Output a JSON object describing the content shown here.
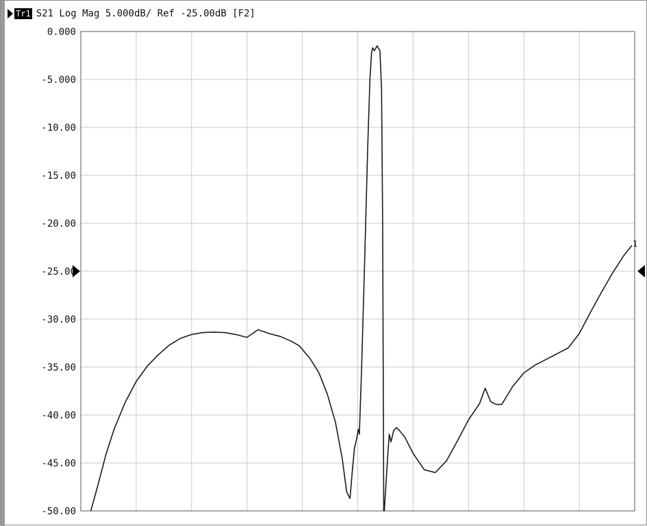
{
  "header": {
    "trace_badge": "Tr1",
    "trace_desc": "S21 Log Mag 5.000dB/ Ref -25.00dB [F2]"
  },
  "chart_data": {
    "type": "line",
    "title": "",
    "xlabel": "",
    "ylabel": "",
    "ylim": [
      -50,
      0
    ],
    "xlim": [
      0,
      10
    ],
    "y_ticks": [
      "0.000",
      "-5.000",
      "-10.00",
      "-15.00",
      "-20.00",
      "-25.00",
      "-30.00",
      "-35.00",
      "-40.00",
      "-45.00",
      "-50.00"
    ],
    "y_tick_values": [
      0,
      -5,
      -10,
      -15,
      -20,
      -25,
      -30,
      -35,
      -40,
      -45,
      -50
    ],
    "x_divisions": 10,
    "reference_level": -25,
    "grid": true,
    "trace_label": "1",
    "series": [
      {
        "name": "S21",
        "x": [
          0.18,
          0.3,
          0.45,
          0.6,
          0.8,
          1.0,
          1.2,
          1.4,
          1.6,
          1.8,
          2.0,
          2.2,
          2.4,
          2.6,
          2.8,
          3.0,
          3.2,
          3.4,
          3.6,
          3.8,
          3.95,
          4.05,
          4.15,
          4.3,
          4.45,
          4.6,
          4.72,
          4.8,
          4.86,
          4.9,
          4.94,
          4.98,
          5.01,
          5.03,
          5.07,
          5.12,
          5.18,
          5.22,
          5.25,
          5.27,
          5.3,
          5.35,
          5.4,
          5.43,
          5.45,
          5.47,
          5.48,
          5.55,
          5.57,
          5.6,
          5.65,
          5.7,
          5.75,
          5.85,
          6.0,
          6.2,
          6.4,
          6.6,
          6.8,
          7.0,
          7.2,
          7.3,
          7.4,
          7.5,
          7.6,
          7.8,
          8.0,
          8.2,
          8.4,
          8.6,
          8.8,
          9.0,
          9.2,
          9.4,
          9.6,
          9.8,
          9.95
        ],
        "values": [
          -50.0,
          -47.5,
          -44.2,
          -41.5,
          -38.7,
          -36.5,
          -34.9,
          -33.7,
          -32.7,
          -32.0,
          -31.6,
          -31.4,
          -31.35,
          -31.4,
          -31.6,
          -31.9,
          -31.1,
          -31.5,
          -31.8,
          -32.3,
          -32.8,
          -33.5,
          -34.2,
          -35.6,
          -37.8,
          -40.8,
          -44.5,
          -48.0,
          -48.7,
          -46.0,
          -43.5,
          -42.5,
          -41.5,
          -42.0,
          -35.0,
          -25.0,
          -12.0,
          -5.0,
          -2.2,
          -1.7,
          -2.0,
          -1.5,
          -2.0,
          -6.0,
          -20.0,
          -50.0,
          -50.0,
          -43.5,
          -42.0,
          -42.8,
          -41.6,
          -41.3,
          -41.6,
          -42.3,
          -44.0,
          -45.7,
          -46.0,
          -44.8,
          -42.7,
          -40.5,
          -38.8,
          -37.2,
          -38.6,
          -38.9,
          -38.9,
          -37.0,
          -35.6,
          -34.8,
          -34.2,
          -33.6,
          -33.0,
          -31.5,
          -29.3,
          -27.2,
          -25.2,
          -23.4,
          -22.3
        ]
      }
    ],
    "colors": {
      "trace": "#1a1a1a",
      "grid": "#c8c8c8",
      "border": "#555555",
      "background": "#ffffff"
    }
  }
}
